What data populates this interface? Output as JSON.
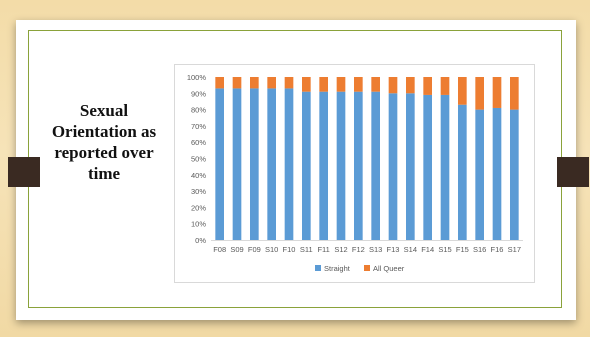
{
  "slide": {
    "title": "Sexual Orientation as reported over time"
  },
  "chart_data": {
    "type": "bar",
    "stacked": true,
    "percent": true,
    "categories": [
      "F08",
      "S09",
      "F09",
      "S10",
      "F10",
      "S11",
      "F11",
      "S12",
      "F12",
      "S13",
      "F13",
      "S14",
      "F14",
      "S15",
      "F15",
      "S16",
      "F16",
      "S17"
    ],
    "series": [
      {
        "name": "Straight",
        "color": "#5b9bd5",
        "values": [
          93,
          93,
          93,
          93,
          93,
          91,
          91,
          91,
          91,
          91,
          90,
          90,
          89,
          89,
          83,
          80,
          81,
          80
        ]
      },
      {
        "name": "All Queer",
        "color": "#ed7d31",
        "values": [
          7,
          7,
          7,
          7,
          7,
          9,
          9,
          9,
          9,
          9,
          10,
          10,
          11,
          11,
          17,
          20,
          19,
          20
        ]
      }
    ],
    "yticks": [
      "0%",
      "10%",
      "20%",
      "30%",
      "40%",
      "50%",
      "60%",
      "70%",
      "80%",
      "90%",
      "100%"
    ],
    "ylim": [
      0,
      100
    ],
    "grid": false,
    "legend_position": "bottom"
  }
}
